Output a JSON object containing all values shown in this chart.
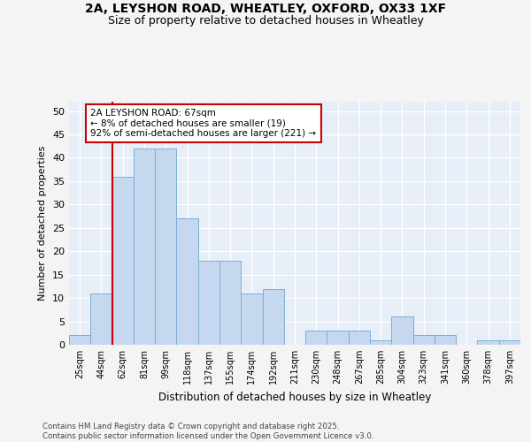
{
  "title1": "2A, LEYSHON ROAD, WHEATLEY, OXFORD, OX33 1XF",
  "title2": "Size of property relative to detached houses in Wheatley",
  "xlabel": "Distribution of detached houses by size in Wheatley",
  "ylabel": "Number of detached properties",
  "categories": [
    "25sqm",
    "44sqm",
    "62sqm",
    "81sqm",
    "99sqm",
    "118sqm",
    "137sqm",
    "155sqm",
    "174sqm",
    "192sqm",
    "211sqm",
    "230sqm",
    "248sqm",
    "267sqm",
    "285sqm",
    "304sqm",
    "323sqm",
    "341sqm",
    "360sqm",
    "378sqm",
    "397sqm"
  ],
  "values": [
    2,
    11,
    36,
    42,
    42,
    27,
    18,
    18,
    11,
    12,
    0,
    3,
    3,
    3,
    1,
    6,
    2,
    2,
    0,
    1,
    1
  ],
  "bar_color": "#c5d8f0",
  "bar_edge_color": "#7bafd4",
  "vline_color": "#cc0000",
  "vline_x_index": 2,
  "annotation_text": "2A LEYSHON ROAD: 67sqm\n← 8% of detached houses are smaller (19)\n92% of semi-detached houses are larger (221) →",
  "annotation_box_facecolor": "#ffffff",
  "annotation_box_edgecolor": "#cc0000",
  "ylim": [
    0,
    52
  ],
  "yticks": [
    0,
    5,
    10,
    15,
    20,
    25,
    30,
    35,
    40,
    45,
    50
  ],
  "fig_background_color": "#f4f4f4",
  "plot_background_color": "#e8eef7",
  "grid_color": "#ffffff",
  "footer_text": "Contains HM Land Registry data © Crown copyright and database right 2025.\nContains public sector information licensed under the Open Government Licence v3.0."
}
